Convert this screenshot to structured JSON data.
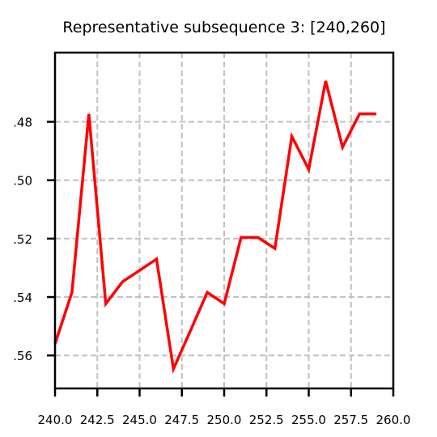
{
  "chart_data": {
    "type": "line",
    "title": "Representative subsequence 3: [240,260]",
    "xlabel": "",
    "ylabel": "",
    "xlim": [
      240,
      260
    ],
    "ylim": [
      0.5713,
      0.4563
    ],
    "y_inverted": true,
    "x_ticks": [
      240.0,
      242.5,
      245.0,
      247.5,
      250.0,
      252.5,
      255.0,
      257.5,
      260.0
    ],
    "x_tick_labels": [
      "240.0",
      "242.5",
      "245.0",
      "247.5",
      "250.0",
      "252.5",
      "255.0",
      "257.5",
      "260.0"
    ],
    "y_ticks": [
      0.48,
      0.5,
      0.52,
      0.54,
      0.56
    ],
    "y_tick_labels": [
      ".48",
      ".50",
      ".52",
      ".54",
      ".56"
    ],
    "grid": true,
    "series": [
      {
        "color": "#ff0000",
        "x": [
          240,
          241,
          242,
          243,
          244,
          245,
          246,
          247,
          248,
          249,
          250,
          251,
          252,
          253,
          254,
          255,
          256,
          257,
          258,
          259
        ],
        "y": [
          0.556,
          0.5384,
          0.4773,
          0.5423,
          0.5347,
          0.5309,
          0.527,
          0.5646,
          0.5516,
          0.5384,
          0.5423,
          0.5196,
          0.5196,
          0.5234,
          0.485,
          0.4963,
          0.466,
          0.4887,
          0.4773,
          0.4773
        ]
      }
    ]
  }
}
